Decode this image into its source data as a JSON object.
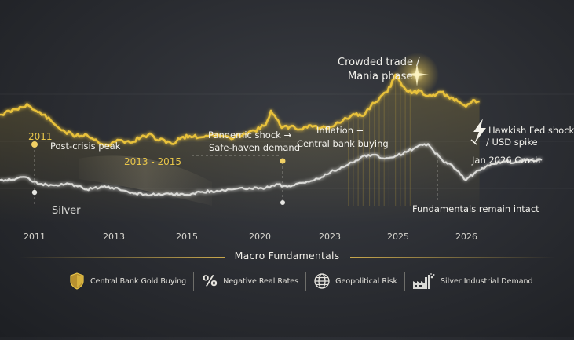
{
  "chart_data": {
    "type": "line",
    "title": "",
    "xlabel": "",
    "ylabel": "",
    "x_ticks": [
      "2011",
      "2013",
      "2015",
      "2020",
      "2023",
      "2025",
      "2026"
    ],
    "series": [
      {
        "name": "",
        "color": "#e8c13a",
        "points": [
          [
            0,
            0.3
          ],
          [
            0.03,
            0.26
          ],
          [
            0.05,
            0.22
          ],
          [
            0.06,
            0.26
          ],
          [
            0.08,
            0.3
          ],
          [
            0.1,
            0.37
          ],
          [
            0.12,
            0.43
          ],
          [
            0.14,
            0.46
          ],
          [
            0.16,
            0.45
          ],
          [
            0.18,
            0.5
          ],
          [
            0.2,
            0.53
          ],
          [
            0.22,
            0.49
          ],
          [
            0.24,
            0.51
          ],
          [
            0.26,
            0.47
          ],
          [
            0.28,
            0.45
          ],
          [
            0.29,
            0.49
          ],
          [
            0.31,
            0.5
          ],
          [
            0.32,
            0.52
          ],
          [
            0.335,
            0.47
          ],
          [
            0.35,
            0.46
          ],
          [
            0.37,
            0.47
          ],
          [
            0.39,
            0.45
          ],
          [
            0.41,
            0.46
          ],
          [
            0.43,
            0.48
          ],
          [
            0.45,
            0.44
          ],
          [
            0.47,
            0.42
          ],
          [
            0.49,
            0.38
          ],
          [
            0.5,
            0.27
          ],
          [
            0.51,
            0.33
          ],
          [
            0.52,
            0.4
          ],
          [
            0.535,
            0.39
          ],
          [
            0.555,
            0.41
          ],
          [
            0.57,
            0.38
          ],
          [
            0.59,
            0.4
          ],
          [
            0.61,
            0.39
          ],
          [
            0.625,
            0.36
          ],
          [
            0.64,
            0.33
          ],
          [
            0.655,
            0.3
          ],
          [
            0.67,
            0.31
          ],
          [
            0.685,
            0.23
          ],
          [
            0.7,
            0.18
          ],
          [
            0.715,
            0.13
          ],
          [
            0.73,
            0.0
          ],
          [
            0.745,
            0.09
          ],
          [
            0.76,
            0.14
          ],
          [
            0.775,
            0.12
          ],
          [
            0.79,
            0.16
          ],
          [
            0.8,
            0.15
          ],
          [
            0.815,
            0.13
          ],
          [
            0.83,
            0.18
          ],
          [
            0.845,
            0.2
          ],
          [
            0.86,
            0.24
          ],
          [
            0.873,
            0.19
          ],
          [
            0.885,
            0.2
          ]
        ]
      },
      {
        "name": "Silver",
        "color": "#d9d9d6",
        "points": [
          [
            0,
            0.79
          ],
          [
            0.03,
            0.78
          ],
          [
            0.05,
            0.77
          ],
          [
            0.07,
            0.82
          ],
          [
            0.1,
            0.83
          ],
          [
            0.13,
            0.82
          ],
          [
            0.16,
            0.86
          ],
          [
            0.19,
            0.84
          ],
          [
            0.22,
            0.86
          ],
          [
            0.25,
            0.89
          ],
          [
            0.28,
            0.9
          ],
          [
            0.31,
            0.89
          ],
          [
            0.34,
            0.9
          ],
          [
            0.37,
            0.88
          ],
          [
            0.4,
            0.87
          ],
          [
            0.43,
            0.86
          ],
          [
            0.46,
            0.85
          ],
          [
            0.49,
            0.85
          ],
          [
            0.51,
            0.82
          ],
          [
            0.53,
            0.84
          ],
          [
            0.56,
            0.81
          ],
          [
            0.59,
            0.78
          ],
          [
            0.61,
            0.73
          ],
          [
            0.64,
            0.68
          ],
          [
            0.67,
            0.61
          ],
          [
            0.69,
            0.6
          ],
          [
            0.71,
            0.63
          ],
          [
            0.73,
            0.61
          ],
          [
            0.75,
            0.58
          ],
          [
            0.77,
            0.54
          ],
          [
            0.79,
            0.52
          ],
          [
            0.8,
            0.57
          ],
          [
            0.82,
            0.66
          ],
          [
            0.835,
            0.68
          ],
          [
            0.85,
            0.75
          ],
          [
            0.86,
            0.79
          ],
          [
            0.875,
            0.74
          ],
          [
            0.89,
            0.7
          ],
          [
            0.91,
            0.67
          ],
          [
            0.93,
            0.65
          ],
          [
            0.95,
            0.66
          ],
          [
            0.97,
            0.64
          ],
          [
            1.0,
            0.64
          ]
        ]
      }
    ],
    "annotations": [
      {
        "id": "year-2011",
        "text": "2011",
        "color": "gold"
      },
      {
        "id": "post-crisis",
        "text": "Post-crisis peak",
        "color": "white"
      },
      {
        "id": "range-2013-2015",
        "text": "2013 - 2015",
        "color": "gold"
      },
      {
        "id": "pandemic-1",
        "text": "Pandemic shock →",
        "color": "white"
      },
      {
        "id": "pandemic-2",
        "text": "Safe-haven demand",
        "color": "white"
      },
      {
        "id": "inflation-1",
        "text": "Inflation +",
        "color": "white"
      },
      {
        "id": "inflation-2",
        "text": "Central bank buying",
        "color": "white"
      },
      {
        "id": "crowded-1",
        "text": "Crowded trade /",
        "color": "white"
      },
      {
        "id": "crowded-2",
        "text": "Mania phase",
        "color": "white"
      },
      {
        "id": "hawkish-1",
        "text": "Hawkish Fed shock",
        "color": "white"
      },
      {
        "id": "hawkish-2",
        "text": "/ USD spike",
        "color": "white"
      },
      {
        "id": "crash",
        "text": "Jan 2026 Crash",
        "color": "white"
      },
      {
        "id": "fundamentals",
        "text": "Fundamentals remain intact",
        "color": "white"
      },
      {
        "id": "silver-label",
        "text": "Silver",
        "color": "grey"
      }
    ]
  },
  "fundamentals": {
    "title": "Macro Fundamentals",
    "items": [
      {
        "label": "Central Bank Gold Buying",
        "icon": "shield-icon"
      },
      {
        "label": "Negative Real Rates",
        "icon": "percent-icon"
      },
      {
        "label": "Geopolitical Risk",
        "icon": "globe-icon"
      },
      {
        "label": "Silver Industrial Demand",
        "icon": "factory-icon"
      }
    ],
    "percent_glyph": "%"
  },
  "colors": {
    "gold": "#e8c13a",
    "silver": "#d9d9d6",
    "background": "#2b2d32",
    "accent_line": "#c9a84c"
  }
}
